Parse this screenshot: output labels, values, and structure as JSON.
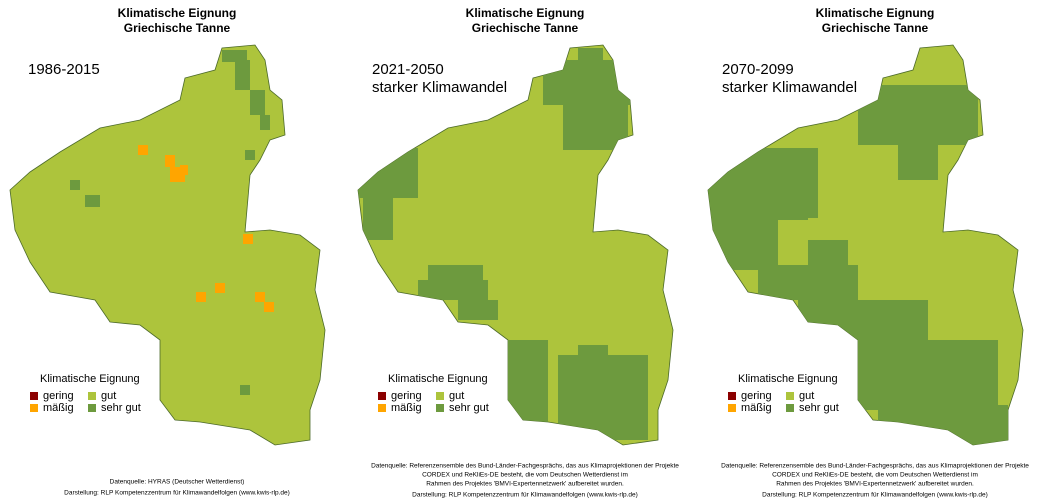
{
  "panels": [
    {
      "title": [
        "Klimatische Eignung",
        "Griechische Tanne"
      ],
      "period": [
        "1986-2015"
      ],
      "legend": {
        "title": "Klimatische Eignung",
        "items": [
          {
            "label": "gering",
            "color": "#8b0000"
          },
          {
            "label": "gut",
            "color": "#adc43c"
          },
          {
            "label": "mäßig",
            "color": "#ffa500"
          },
          {
            "label": "sehr gut",
            "color": "#6d9a3e"
          }
        ]
      },
      "notes": [
        "Datenquelle: HYRAS (Deutscher Wetterdienst)",
        "Darstellung: RLP Kompetenzzentrum für Klimawandelfolgen (www.kwis-rlp.de)"
      ]
    },
    {
      "title": [
        "Klimatische Eignung",
        "Griechische Tanne"
      ],
      "period": [
        "2021-2050",
        "starker Klimawandel"
      ],
      "legend": {
        "title": "Klimatische Eignung",
        "items": [
          {
            "label": "gering",
            "color": "#8b0000"
          },
          {
            "label": "gut",
            "color": "#adc43c"
          },
          {
            "label": "mäßig",
            "color": "#ffa500"
          },
          {
            "label": "sehr gut",
            "color": "#6d9a3e"
          }
        ]
      },
      "notes": [
        "Datenquelle: Referenzensemble des Bund-Länder-Fachgesprächs, das aus Klimaprojektionen der Projekte",
        "CORDEX und ReKliEs-DE besteht, die vom Deutschen Wetterdienst im",
        "Rahmen des Projektes 'BMVI-Expertennetzwerk' aufbereitet wurden.",
        "Darstellung: RLP Kompetenzzentrum für Klimawandelfolgen (www.kwis-rlp.de)"
      ]
    },
    {
      "title": [
        "Klimatische Eignung",
        "Griechische Tanne"
      ],
      "period": [
        "2070-2099",
        "starker Klimawandel"
      ],
      "legend": {
        "title": "Klimatische Eignung",
        "items": [
          {
            "label": "gering",
            "color": "#8b0000"
          },
          {
            "label": "gut",
            "color": "#adc43c"
          },
          {
            "label": "mäßig",
            "color": "#ffa500"
          },
          {
            "label": "sehr gut",
            "color": "#6d9a3e"
          }
        ]
      },
      "notes": [
        "Datenquelle: Referenzensemble des Bund-Länder-Fachgesprächs, das aus Klimaprojektionen der Projekte",
        "CORDEX und ReKliEs-DE besteht, die vom Deutschen Wetterdienst im",
        "Rahmen des Projektes 'BMVI-Expertennetzwerk' aufbereitet wurden.",
        "Darstellung: RLP Kompetenzzentrum für Klimawandelfolgen (www.kwis-rlp.de)"
      ]
    }
  ]
}
